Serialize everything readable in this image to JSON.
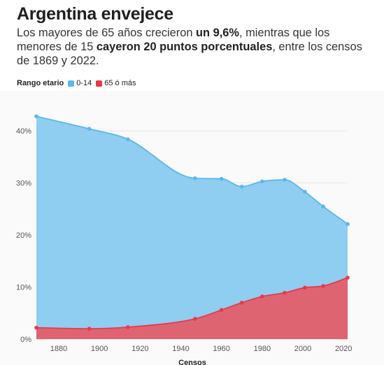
{
  "header": {
    "title": "Argentina envejece",
    "subtitle_parts": [
      {
        "text": "Los mayores de 65 años crecieron ",
        "bold": false
      },
      {
        "text": "un 9,6%",
        "bold": true
      },
      {
        "text": ", mientras que los menores de 15 ",
        "bold": false
      },
      {
        "text": "cayeron 20 puntos porcentuales",
        "bold": true
      },
      {
        "text": ", entre los censos de 1869 y 2022.",
        "bold": false
      }
    ]
  },
  "legend": {
    "title": "Rango etario",
    "items": [
      {
        "label": "0-14",
        "color": "#5bb8ea"
      },
      {
        "label": "65 ó más",
        "color": "#e8394a"
      }
    ]
  },
  "chart_data": {
    "type": "area",
    "title": "Argentina envejece",
    "xlabel": "Censos",
    "ylabel": "",
    "xlim": [
      1869,
      2022
    ],
    "ylim": [
      0,
      45
    ],
    "x_ticks": [
      1880,
      1900,
      1920,
      1940,
      1960,
      1980,
      2000,
      2020
    ],
    "y_ticks": [
      0,
      10,
      20,
      30,
      40
    ],
    "y_tick_labels": [
      "0%",
      "10%",
      "20%",
      "30%",
      "40%"
    ],
    "grid": true,
    "legend_position": "top-left",
    "x": [
      1869,
      1895,
      1914,
      1947,
      1960,
      1970,
      1980,
      1991,
      2001,
      2010,
      2022
    ],
    "series": [
      {
        "name": "0-14",
        "color": "#5bb8ea",
        "fill": "#8fcdf1",
        "values": [
          42.8,
          40.4,
          38.4,
          30.9,
          30.8,
          29.3,
          30.3,
          30.6,
          28.3,
          25.5,
          22.1
        ]
      },
      {
        "name": "65 ó más",
        "color": "#e8394a",
        "fill": "#df6472",
        "values": [
          2.2,
          2.0,
          2.3,
          3.9,
          5.6,
          7.0,
          8.2,
          8.9,
          9.9,
          10.2,
          11.8
        ]
      }
    ]
  }
}
